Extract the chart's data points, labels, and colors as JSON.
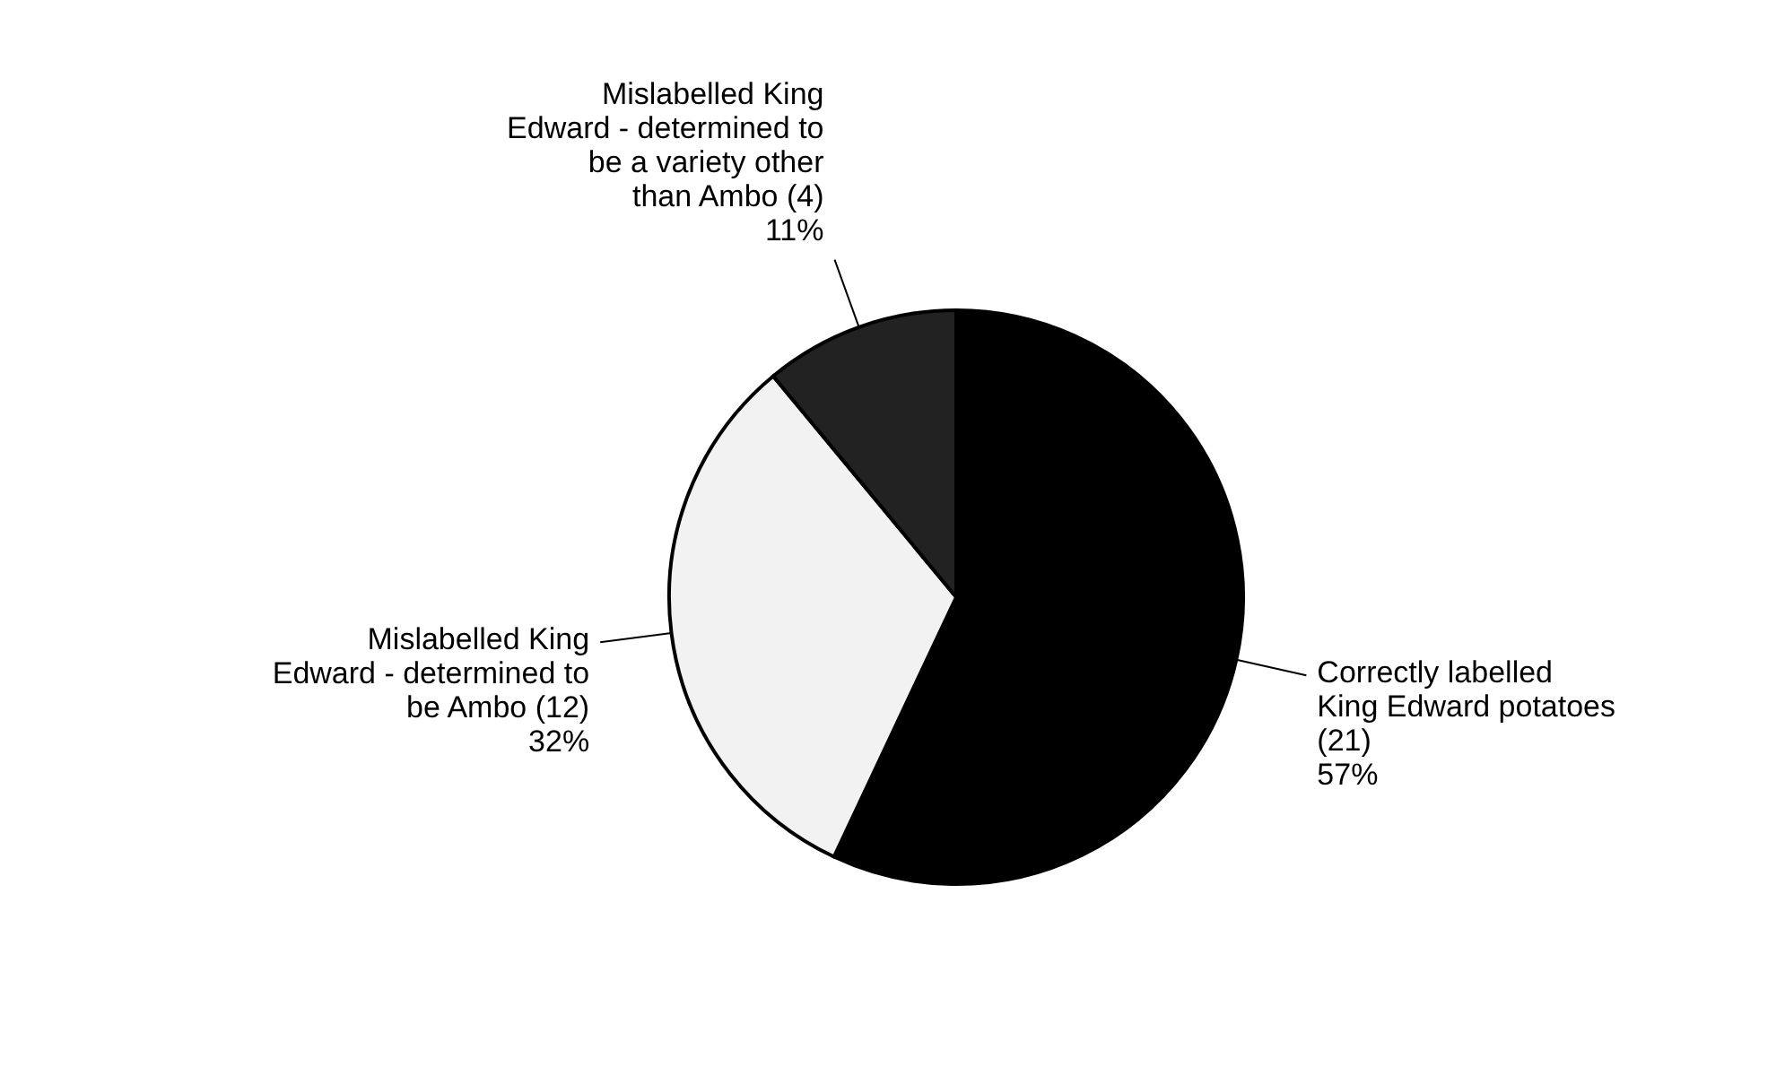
{
  "chart_data": {
    "type": "pie",
    "categories": [
      "Correctly labelled King Edward potatoes (21)",
      "Mislabelled King Edward - determined to be Ambo (12)",
      "Mislabelled King Edward - determined to be a variety other than Ambo (4)"
    ],
    "values": [
      57,
      32,
      11
    ],
    "value_labels": [
      "57%",
      "32%",
      "11%"
    ],
    "colors": [
      "#000000",
      "#f2f2f2",
      "#222222"
    ],
    "legend": false
  }
}
